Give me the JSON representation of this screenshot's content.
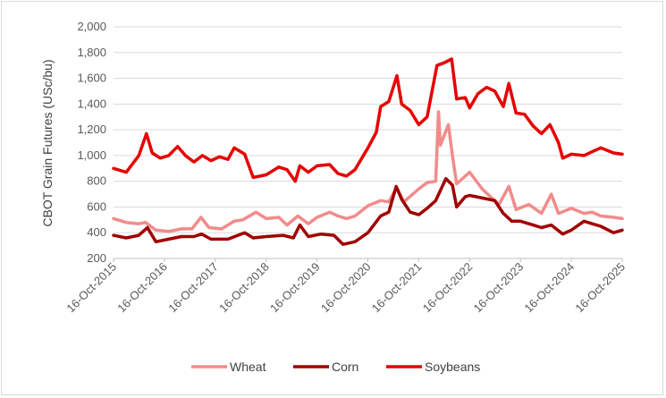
{
  "chart_data": {
    "type": "line",
    "ylabel": "CBOT Grain Futures (USc/bu)",
    "xlabel": "",
    "ylim": [
      200,
      2000
    ],
    "yticks": [
      "200",
      "400",
      "600",
      "800",
      "1,000",
      "1,200",
      "1,400",
      "1,600",
      "1,800",
      "2,000"
    ],
    "x_tick_labels": [
      "16-Oct-2015",
      "16-Oct-2016",
      "16-Oct-2017",
      "16-Oct-2018",
      "16-Oct-2019",
      "16-Oct-2020",
      "16-Oct-2021",
      "16-Oct-2022",
      "16-Oct-2023",
      "16-Oct-2024",
      "16-Oct-2025"
    ],
    "x_range": [
      "2015-10-16",
      "2025-10-16"
    ],
    "legend_position": "bottom",
    "series": [
      {
        "name": "Wheat",
        "color": "#f28b8b",
        "points": [
          [
            "2015-10-16",
            510
          ],
          [
            "2016-01-15",
            480
          ],
          [
            "2016-04-15",
            470
          ],
          [
            "2016-06-01",
            480
          ],
          [
            "2016-08-15",
            420
          ],
          [
            "2016-11-15",
            410
          ],
          [
            "2017-02-15",
            430
          ],
          [
            "2017-05-01",
            430
          ],
          [
            "2017-07-05",
            520
          ],
          [
            "2017-09-01",
            440
          ],
          [
            "2017-12-01",
            430
          ],
          [
            "2018-03-01",
            490
          ],
          [
            "2018-05-01",
            500
          ],
          [
            "2018-08-05",
            560
          ],
          [
            "2018-10-16",
            510
          ],
          [
            "2019-01-15",
            520
          ],
          [
            "2019-03-15",
            460
          ],
          [
            "2019-06-01",
            530
          ],
          [
            "2019-08-15",
            470
          ],
          [
            "2019-10-16",
            520
          ],
          [
            "2020-01-15",
            560
          ],
          [
            "2020-03-15",
            530
          ],
          [
            "2020-05-15",
            510
          ],
          [
            "2020-07-15",
            530
          ],
          [
            "2020-10-16",
            610
          ],
          [
            "2021-01-15",
            650
          ],
          [
            "2021-03-15",
            640
          ],
          [
            "2021-05-10",
            750
          ],
          [
            "2021-07-01",
            640
          ],
          [
            "2021-10-16",
            740
          ],
          [
            "2021-12-15",
            790
          ],
          [
            "2022-02-15",
            800
          ],
          [
            "2022-03-07",
            1340
          ],
          [
            "2022-03-20",
            1080
          ],
          [
            "2022-05-17",
            1240
          ],
          [
            "2022-06-15",
            1000
          ],
          [
            "2022-07-15",
            780
          ],
          [
            "2022-10-16",
            870
          ],
          [
            "2023-01-15",
            740
          ],
          [
            "2023-03-15",
            680
          ],
          [
            "2023-05-15",
            620
          ],
          [
            "2023-07-25",
            760
          ],
          [
            "2023-09-15",
            580
          ],
          [
            "2023-12-15",
            620
          ],
          [
            "2024-03-15",
            550
          ],
          [
            "2024-05-25",
            700
          ],
          [
            "2024-07-15",
            550
          ],
          [
            "2024-10-16",
            590
          ],
          [
            "2025-01-15",
            550
          ],
          [
            "2025-03-15",
            560
          ],
          [
            "2025-05-15",
            530
          ],
          [
            "2025-08-15",
            520
          ],
          [
            "2025-10-16",
            510
          ]
        ]
      },
      {
        "name": "Corn",
        "color": "#a00000",
        "points": [
          [
            "2015-10-16",
            380
          ],
          [
            "2016-01-15",
            360
          ],
          [
            "2016-04-15",
            380
          ],
          [
            "2016-06-15",
            440
          ],
          [
            "2016-08-15",
            330
          ],
          [
            "2016-11-15",
            350
          ],
          [
            "2017-02-15",
            370
          ],
          [
            "2017-05-15",
            370
          ],
          [
            "2017-07-10",
            390
          ],
          [
            "2017-09-15",
            350
          ],
          [
            "2018-01-15",
            350
          ],
          [
            "2018-05-15",
            400
          ],
          [
            "2018-07-15",
            360
          ],
          [
            "2018-10-16",
            370
          ],
          [
            "2019-02-15",
            380
          ],
          [
            "2019-04-30",
            360
          ],
          [
            "2019-06-15",
            460
          ],
          [
            "2019-08-15",
            370
          ],
          [
            "2019-11-15",
            390
          ],
          [
            "2020-02-15",
            380
          ],
          [
            "2020-04-20",
            310
          ],
          [
            "2020-07-15",
            330
          ],
          [
            "2020-10-16",
            400
          ],
          [
            "2021-01-15",
            530
          ],
          [
            "2021-03-15",
            560
          ],
          [
            "2021-05-07",
            760
          ],
          [
            "2021-06-15",
            660
          ],
          [
            "2021-08-15",
            560
          ],
          [
            "2021-10-16",
            540
          ],
          [
            "2021-12-15",
            590
          ],
          [
            "2022-02-15",
            650
          ],
          [
            "2022-04-29",
            820
          ],
          [
            "2022-06-15",
            770
          ],
          [
            "2022-07-15",
            600
          ],
          [
            "2022-09-15",
            680
          ],
          [
            "2022-10-16",
            690
          ],
          [
            "2023-01-15",
            670
          ],
          [
            "2023-04-15",
            650
          ],
          [
            "2023-06-15",
            550
          ],
          [
            "2023-08-15",
            490
          ],
          [
            "2023-10-16",
            490
          ],
          [
            "2024-01-15",
            460
          ],
          [
            "2024-03-15",
            440
          ],
          [
            "2024-05-25",
            460
          ],
          [
            "2024-08-15",
            390
          ],
          [
            "2024-10-16",
            420
          ],
          [
            "2025-01-15",
            490
          ],
          [
            "2025-03-15",
            470
          ],
          [
            "2025-05-15",
            450
          ],
          [
            "2025-08-15",
            400
          ],
          [
            "2025-10-16",
            420
          ]
        ]
      },
      {
        "name": "Soybeans",
        "color": "#e60000",
        "points": [
          [
            "2015-10-16",
            900
          ],
          [
            "2016-01-15",
            870
          ],
          [
            "2016-04-15",
            1000
          ],
          [
            "2016-06-08",
            1170
          ],
          [
            "2016-07-20",
            1020
          ],
          [
            "2016-09-15",
            980
          ],
          [
            "2016-11-15",
            1000
          ],
          [
            "2017-01-18",
            1070
          ],
          [
            "2017-03-15",
            1000
          ],
          [
            "2017-05-15",
            950
          ],
          [
            "2017-07-15",
            1000
          ],
          [
            "2017-09-15",
            960
          ],
          [
            "2017-11-15",
            990
          ],
          [
            "2018-01-15",
            970
          ],
          [
            "2018-03-01",
            1060
          ],
          [
            "2018-05-15",
            1010
          ],
          [
            "2018-07-15",
            830
          ],
          [
            "2018-10-16",
            850
          ],
          [
            "2019-01-15",
            910
          ],
          [
            "2019-03-15",
            890
          ],
          [
            "2019-05-13",
            800
          ],
          [
            "2019-06-15",
            920
          ],
          [
            "2019-08-15",
            870
          ],
          [
            "2019-10-16",
            920
          ],
          [
            "2020-01-15",
            930
          ],
          [
            "2020-03-15",
            860
          ],
          [
            "2020-05-15",
            840
          ],
          [
            "2020-07-15",
            890
          ],
          [
            "2020-10-16",
            1060
          ],
          [
            "2020-12-15",
            1180
          ],
          [
            "2021-01-15",
            1380
          ],
          [
            "2021-03-15",
            1420
          ],
          [
            "2021-05-12",
            1620
          ],
          [
            "2021-06-15",
            1400
          ],
          [
            "2021-08-15",
            1350
          ],
          [
            "2021-10-16",
            1240
          ],
          [
            "2021-12-15",
            1300
          ],
          [
            "2022-02-24",
            1700
          ],
          [
            "2022-04-15",
            1720
          ],
          [
            "2022-06-09",
            1750
          ],
          [
            "2022-07-15",
            1440
          ],
          [
            "2022-09-15",
            1450
          ],
          [
            "2022-10-16",
            1370
          ],
          [
            "2022-12-15",
            1480
          ],
          [
            "2023-02-15",
            1530
          ],
          [
            "2023-04-15",
            1500
          ],
          [
            "2023-06-15",
            1380
          ],
          [
            "2023-07-25",
            1560
          ],
          [
            "2023-09-15",
            1330
          ],
          [
            "2023-11-15",
            1320
          ],
          [
            "2024-01-15",
            1230
          ],
          [
            "2024-03-15",
            1170
          ],
          [
            "2024-05-15",
            1240
          ],
          [
            "2024-07-15",
            1100
          ],
          [
            "2024-08-15",
            980
          ],
          [
            "2024-10-16",
            1010
          ],
          [
            "2025-01-15",
            1000
          ],
          [
            "2025-03-15",
            1030
          ],
          [
            "2025-05-15",
            1060
          ],
          [
            "2025-08-15",
            1020
          ],
          [
            "2025-10-16",
            1010
          ]
        ]
      }
    ]
  }
}
